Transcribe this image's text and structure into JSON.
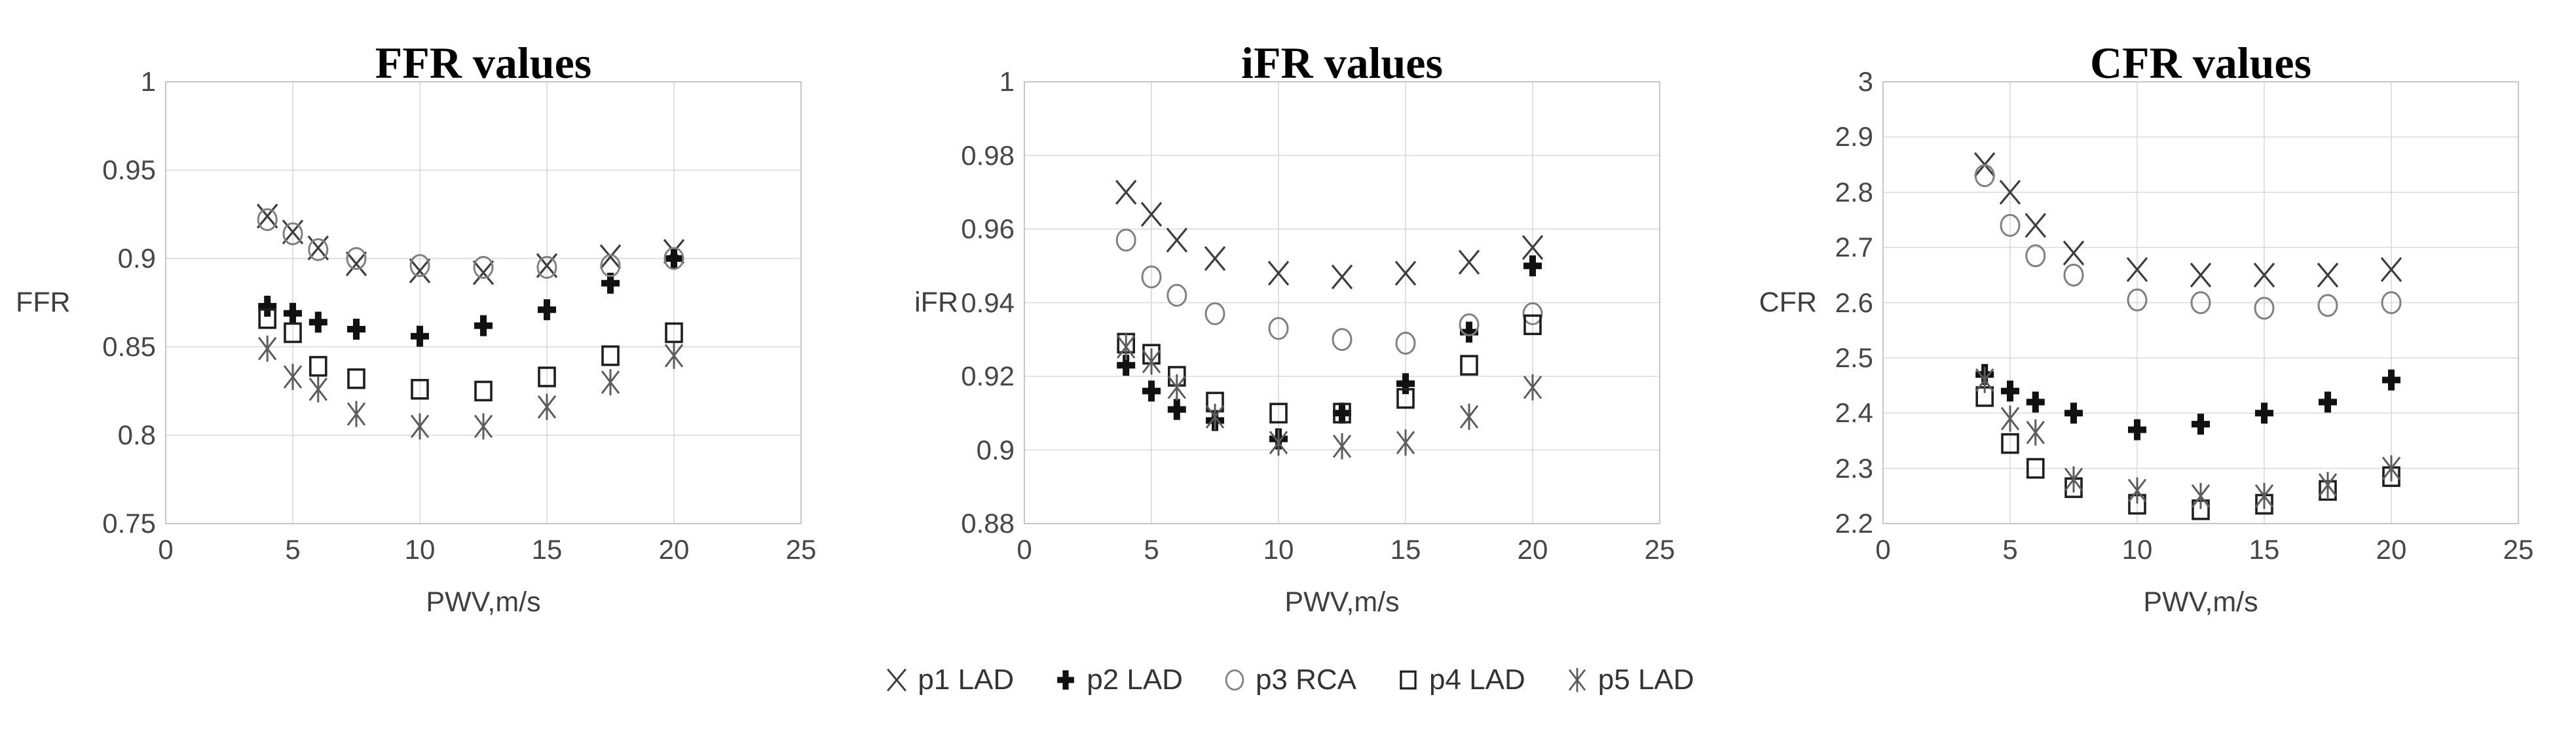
{
  "page": {
    "background": "#ffffff"
  },
  "colors": {
    "grid": "#d9d9d9",
    "plot_border": "#c3c3c3",
    "tick_text": "#474747",
    "title_text": "#000000",
    "axis_title_text": "#3f3f3f",
    "legend_text": "#333333",
    "marker_x": "#3d3d3d",
    "marker_plus": "#111111",
    "marker_circle": "#808080",
    "marker_square": "#1f1f1f",
    "marker_star": "#5c5c5c"
  },
  "legend": {
    "position": "bottom-center",
    "items": [
      {
        "marker": "x",
        "label": "p1 LAD"
      },
      {
        "marker": "plus",
        "label": "p2 LAD"
      },
      {
        "marker": "circle",
        "label": "p3 RCA"
      },
      {
        "marker": "square",
        "label": "p4 LAD"
      },
      {
        "marker": "star",
        "label": "p5 LAD"
      }
    ]
  },
  "chart_data": [
    {
      "type": "scatter",
      "title": "FFR values",
      "ylabel": "FFR",
      "xlabel": "PWV,m/s",
      "xlim": [
        0,
        25
      ],
      "ylim": [
        0.75,
        1.0
      ],
      "grid": true,
      "xticks": [
        0,
        5,
        10,
        15,
        20,
        25
      ],
      "xtick_labels": [
        "0",
        "5",
        "10",
        "15",
        "20",
        "25"
      ],
      "yticks": [
        1,
        0.95,
        0.9,
        0.85,
        0.8,
        0.75
      ],
      "ytick_labels": [
        "1",
        "0.95",
        "0.9",
        "0.85",
        "0.8",
        "0.75"
      ],
      "x": [
        4,
        5,
        6,
        7.5,
        10,
        12.5,
        15,
        17.5,
        20
      ],
      "series": [
        {
          "name": "p1 LAD",
          "marker": "x",
          "values": [
            0.924,
            0.915,
            0.906,
            0.897,
            0.893,
            0.892,
            0.896,
            0.901,
            0.904
          ]
        },
        {
          "name": "p2 LAD",
          "marker": "plus",
          "values": [
            0.873,
            0.869,
            0.864,
            0.86,
            0.856,
            0.862,
            0.871,
            0.886,
            0.9
          ]
        },
        {
          "name": "p3 RCA",
          "marker": "circle",
          "values": [
            0.922,
            0.914,
            0.905,
            0.9,
            0.896,
            0.895,
            0.895,
            0.896,
            0.9
          ]
        },
        {
          "name": "p4 LAD",
          "marker": "square",
          "values": [
            0.866,
            0.858,
            0.839,
            0.832,
            0.826,
            0.825,
            0.833,
            0.845,
            0.858
          ]
        },
        {
          "name": "p5 LAD",
          "marker": "star",
          "values": [
            0.849,
            0.833,
            0.826,
            0.812,
            0.805,
            0.805,
            0.816,
            0.83,
            0.845
          ]
        }
      ]
    },
    {
      "type": "scatter",
      "title": "iFR values",
      "ylabel": "iFR",
      "xlabel": "PWV,m/s",
      "xlim": [
        0,
        25
      ],
      "ylim": [
        0.88,
        1.0
      ],
      "grid": true,
      "xticks": [
        0,
        5,
        10,
        15,
        20,
        25
      ],
      "xtick_labels": [
        "0",
        "5",
        "10",
        "15",
        "20",
        "25"
      ],
      "yticks": [
        1,
        0.98,
        0.96,
        0.94,
        0.92,
        0.9,
        0.88
      ],
      "ytick_labels": [
        "1",
        "0.98",
        "0.96",
        "0.94",
        "0.92",
        "0.9",
        "0.88"
      ],
      "x": [
        4,
        5,
        6,
        7.5,
        10,
        12.5,
        15,
        17.5,
        20
      ],
      "series": [
        {
          "name": "p1 LAD",
          "marker": "x",
          "values": [
            0.97,
            0.964,
            0.957,
            0.952,
            0.948,
            0.947,
            0.948,
            0.951,
            0.955
          ]
        },
        {
          "name": "p2 LAD",
          "marker": "plus",
          "values": [
            0.923,
            0.916,
            0.911,
            0.908,
            0.903,
            0.91,
            0.918,
            0.932,
            0.95
          ]
        },
        {
          "name": "p3 RCA",
          "marker": "circle",
          "values": [
            0.957,
            0.947,
            0.942,
            0.937,
            0.933,
            0.93,
            0.929,
            0.934,
            0.937
          ]
        },
        {
          "name": "p4 LAD",
          "marker": "square",
          "values": [
            0.929,
            0.926,
            0.92,
            0.913,
            0.91,
            0.91,
            0.914,
            0.923,
            0.934
          ]
        },
        {
          "name": "p5 LAD",
          "marker": "star",
          "values": [
            0.928,
            0.924,
            0.917,
            0.909,
            0.902,
            0.901,
            0.902,
            0.909,
            0.917
          ]
        }
      ]
    },
    {
      "type": "scatter",
      "title": "CFR values",
      "ylabel": "CFR",
      "xlabel": "PWV,m/s",
      "xlim": [
        0,
        25
      ],
      "ylim": [
        2.2,
        3.0
      ],
      "grid": true,
      "xticks": [
        0,
        5,
        10,
        15,
        20,
        25
      ],
      "xtick_labels": [
        "0",
        "5",
        "10",
        "15",
        "20",
        "25"
      ],
      "yticks": [
        3,
        2.9,
        2.8,
        2.7,
        2.6,
        2.5,
        2.4,
        2.3,
        2.2
      ],
      "ytick_labels": [
        "3",
        "2.9",
        "2.8",
        "2.7",
        "2.6",
        "2.5",
        "2.4",
        "2.3",
        "2.2"
      ],
      "x": [
        4,
        5,
        6,
        7.5,
        10,
        12.5,
        15,
        17.5,
        20
      ],
      "series": [
        {
          "name": "p1 LAD",
          "marker": "x",
          "values": [
            2.85,
            2.8,
            2.74,
            2.69,
            2.66,
            2.65,
            2.65,
            2.65,
            2.66
          ]
        },
        {
          "name": "p2 LAD",
          "marker": "plus",
          "values": [
            2.47,
            2.44,
            2.42,
            2.4,
            2.37,
            2.38,
            2.4,
            2.42,
            2.46
          ]
        },
        {
          "name": "p3 RCA",
          "marker": "circle",
          "values": [
            2.83,
            2.74,
            2.685,
            2.65,
            2.605,
            2.6,
            2.59,
            2.595,
            2.6
          ]
        },
        {
          "name": "p4 LAD",
          "marker": "square",
          "values": [
            2.43,
            2.345,
            2.3,
            2.265,
            2.235,
            2.225,
            2.235,
            2.26,
            2.285
          ]
        },
        {
          "name": "p5 LAD",
          "marker": "star",
          "values": [
            2.46,
            2.39,
            2.365,
            2.28,
            2.26,
            2.25,
            2.25,
            2.27,
            2.3
          ]
        }
      ]
    }
  ]
}
